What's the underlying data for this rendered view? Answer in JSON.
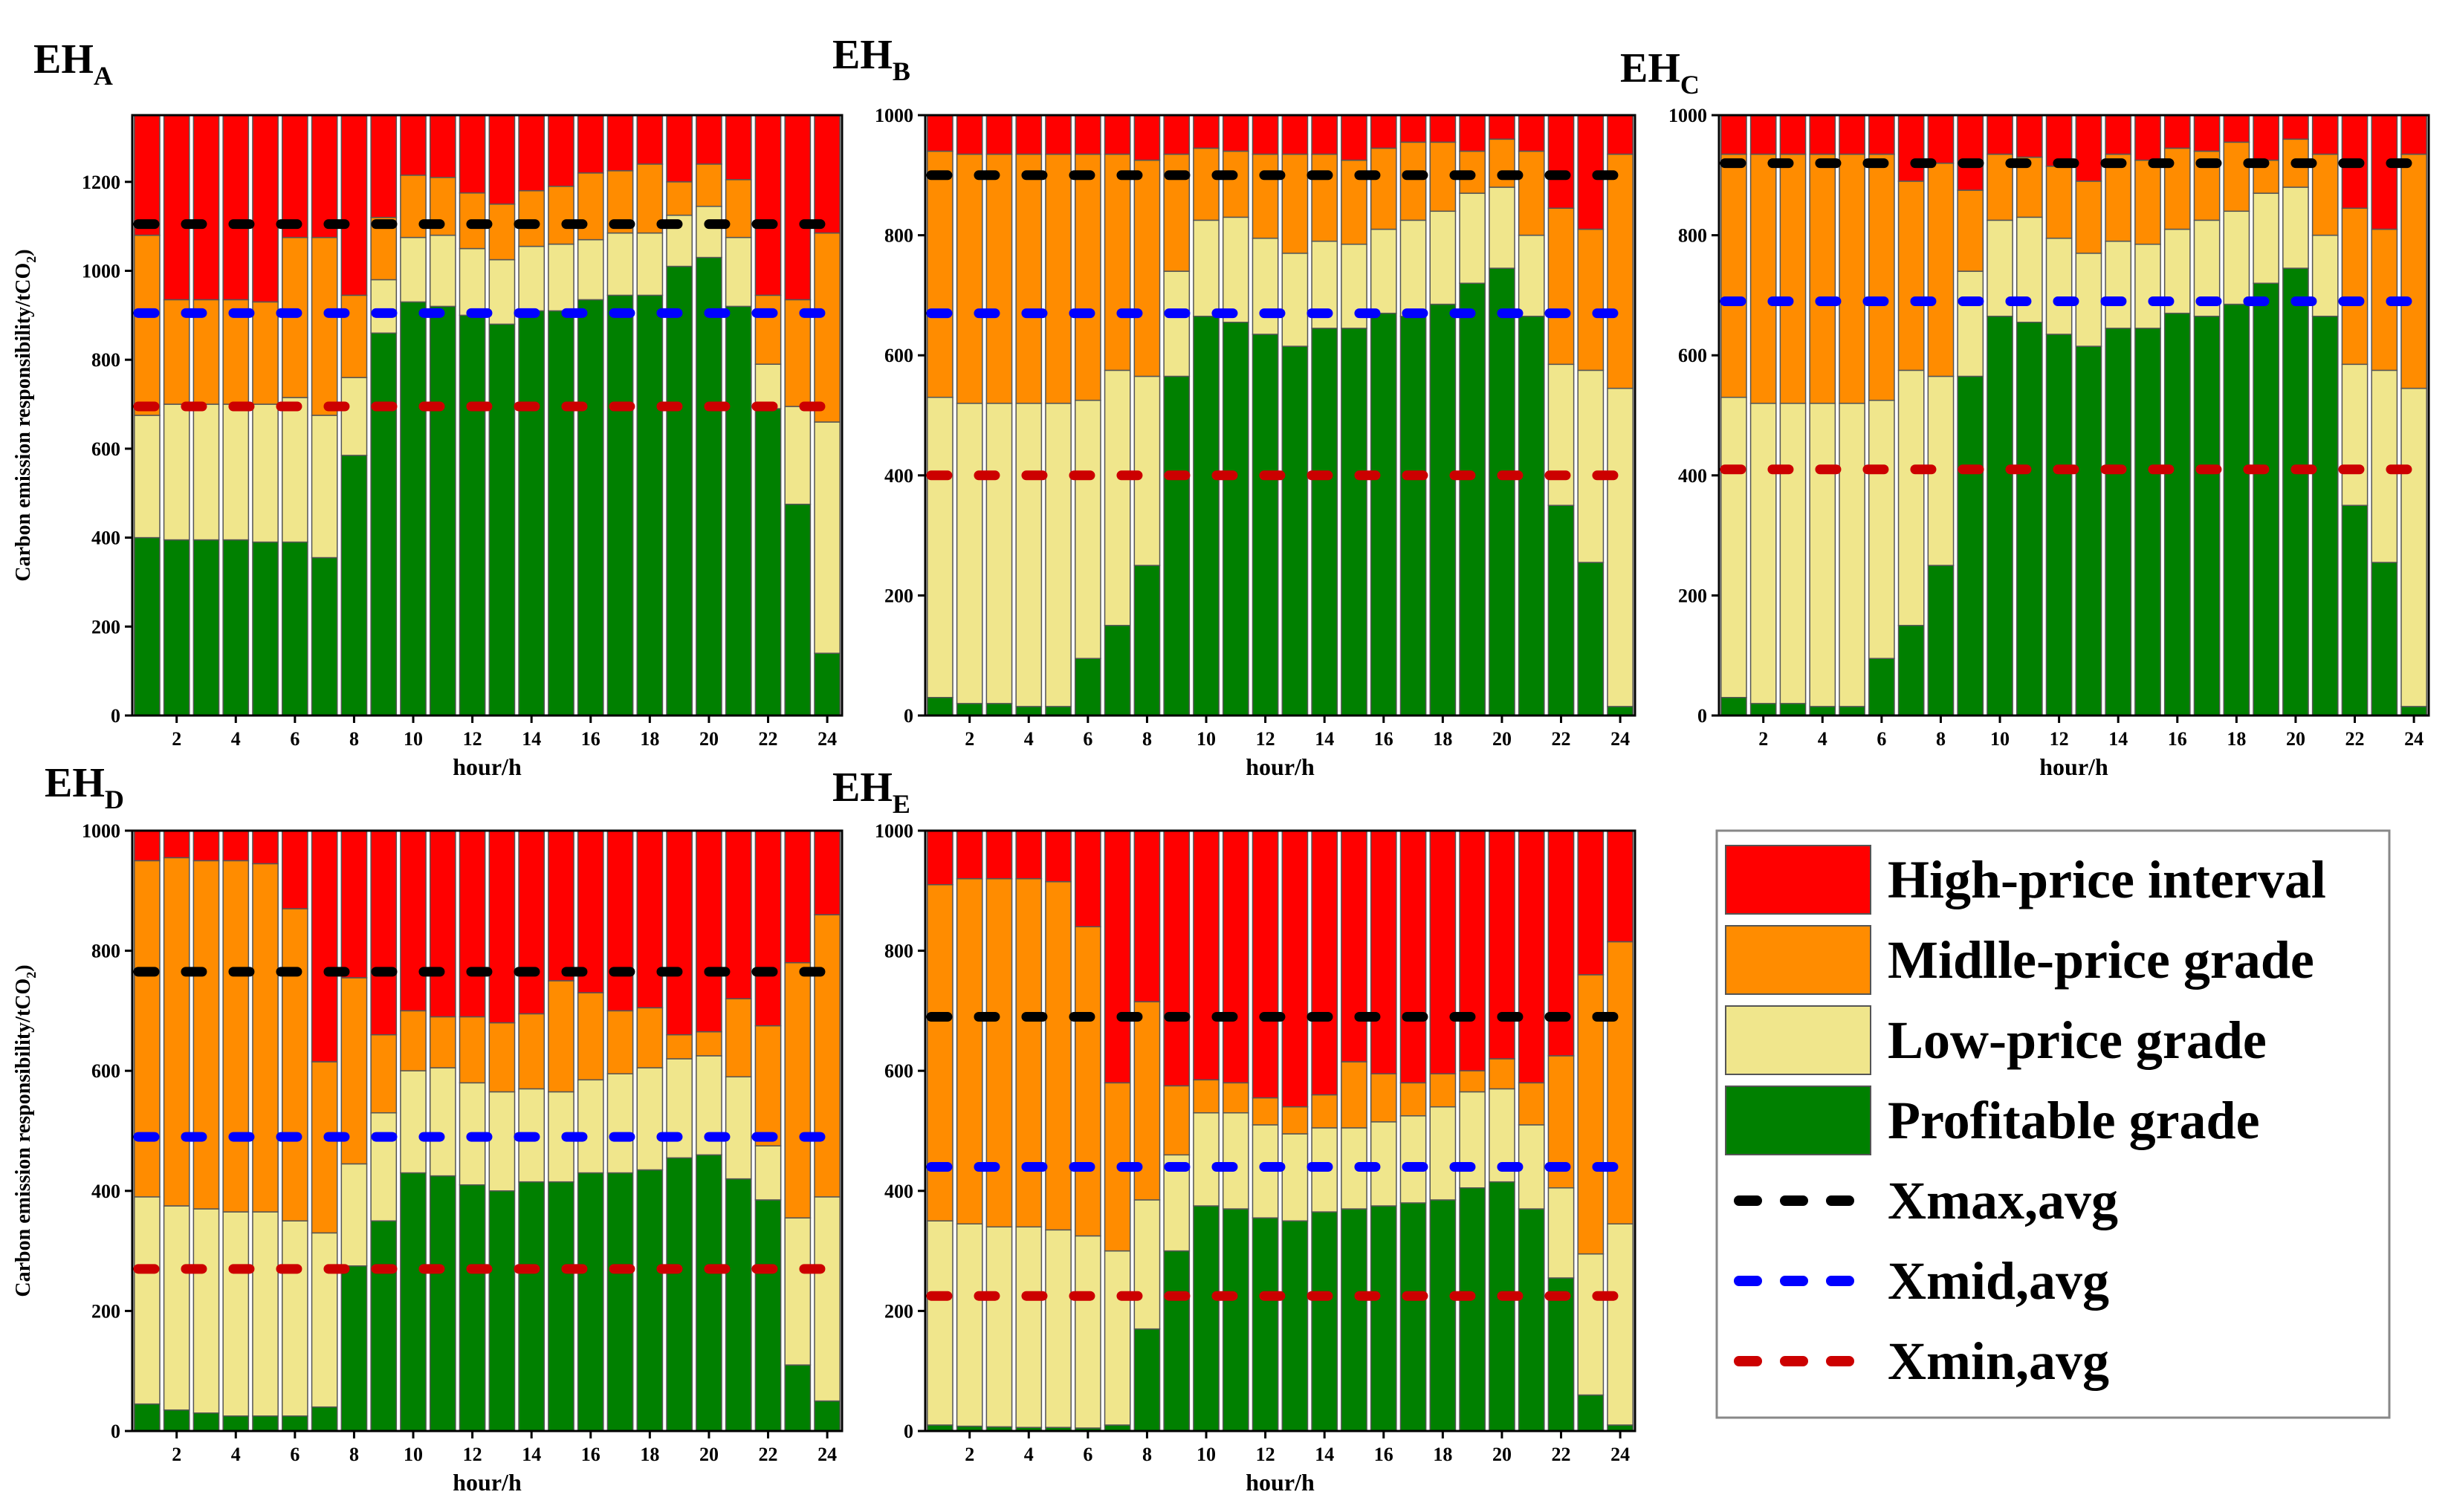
{
  "chart_data": {
    "type": "bar",
    "stacked": true,
    "legend": {
      "placement": "bottom-right",
      "entries": [
        {
          "label": "High-price interval",
          "color": "#ff0000",
          "kind": "bar"
        },
        {
          "label": "Midlle-price grade",
          "color": "#ff8c00",
          "kind": "bar"
        },
        {
          "label": "Low-price grade",
          "color": "#f0e68c",
          "kind": "bar"
        },
        {
          "label": "Profitable grade",
          "color": "#008000",
          "kind": "bar"
        },
        {
          "label": "Xmax,avg",
          "color": "#000000",
          "kind": "dash"
        },
        {
          "label": "Xmid,avg",
          "color": "#0000ff",
          "kind": "dash"
        },
        {
          "label": "Xmin,avg",
          "color": "#cc0000",
          "kind": "dash"
        }
      ]
    },
    "charts": [
      {
        "title_main": "EH",
        "title_sub": "A",
        "xlabel": "hour/h",
        "ylabel_main": "Carbon emission responsibility/tCO",
        "ylabel_sub": "2",
        "ylabel_end": ")",
        "ylim": [
          0,
          1350
        ],
        "yticks": [
          0,
          200,
          400,
          600,
          800,
          1000,
          1200
        ],
        "xticks": [
          2,
          4,
          6,
          8,
          10,
          12,
          14,
          16,
          18,
          20,
          22,
          24
        ],
        "categories": [
          1,
          2,
          3,
          4,
          5,
          6,
          7,
          8,
          9,
          10,
          11,
          12,
          13,
          14,
          15,
          16,
          17,
          18,
          19,
          20,
          21,
          22,
          23,
          24
        ],
        "profitable": [
          400,
          395,
          395,
          395,
          390,
          390,
          355,
          585,
          860,
          930,
          920,
          900,
          880,
          910,
          910,
          935,
          945,
          945,
          1010,
          1030,
          920,
          690,
          475,
          140
        ],
        "low": [
          675,
          700,
          700,
          700,
          700,
          715,
          675,
          760,
          980,
          1075,
          1080,
          1050,
          1025,
          1055,
          1060,
          1070,
          1085,
          1085,
          1125,
          1145,
          1075,
          790,
          695,
          660
        ],
        "mid": [
          1080,
          935,
          935,
          935,
          930,
          1075,
          1075,
          945,
          1120,
          1215,
          1210,
          1175,
          1150,
          1180,
          1190,
          1220,
          1225,
          1240,
          1200,
          1240,
          1205,
          945,
          935,
          1085
        ],
        "high": [
          1350,
          1350,
          1350,
          1350,
          1350,
          1350,
          1350,
          1350,
          1350,
          1350,
          1350,
          1350,
          1350,
          1350,
          1350,
          1350,
          1350,
          1350,
          1350,
          1350,
          1350,
          1350,
          1350,
          1350
        ],
        "xmax_avg": 1105,
        "xmid_avg": 905,
        "xmin_avg": 695
      },
      {
        "title_main": "EH",
        "title_sub": "B",
        "xlabel": "hour/h",
        "ylim": [
          0,
          1000
        ],
        "yticks": [
          0,
          200,
          400,
          600,
          800,
          1000
        ],
        "xticks": [
          2,
          4,
          6,
          8,
          10,
          12,
          14,
          16,
          18,
          20,
          22,
          24
        ],
        "categories": [
          1,
          2,
          3,
          4,
          5,
          6,
          7,
          8,
          9,
          10,
          11,
          12,
          13,
          14,
          15,
          16,
          17,
          18,
          19,
          20,
          21,
          22,
          23,
          24
        ],
        "profitable": [
          30,
          20,
          20,
          15,
          15,
          95,
          150,
          250,
          565,
          665,
          655,
          635,
          615,
          645,
          645,
          670,
          665,
          685,
          720,
          745,
          665,
          350,
          255,
          15
        ],
        "low": [
          530,
          520,
          520,
          520,
          520,
          525,
          575,
          565,
          740,
          825,
          830,
          795,
          770,
          790,
          785,
          810,
          825,
          840,
          870,
          880,
          800,
          585,
          575,
          545
        ],
        "mid": [
          940,
          935,
          935,
          935,
          935,
          935,
          935,
          925,
          935,
          945,
          940,
          935,
          935,
          935,
          925,
          945,
          955,
          955,
          940,
          960,
          940,
          845,
          810,
          935
        ],
        "high": [
          1000,
          1000,
          1000,
          1000,
          1000,
          1000,
          1000,
          1000,
          1000,
          1000,
          1000,
          1000,
          1000,
          1000,
          1000,
          1000,
          1000,
          1000,
          1000,
          1000,
          1000,
          1000,
          1000,
          1000
        ],
        "xmax_avg": 900,
        "xmid_avg": 670,
        "xmin_avg": 400
      },
      {
        "title_main": "EH",
        "title_sub": "C",
        "xlabel": "hour/h",
        "ylim": [
          0,
          1000
        ],
        "yticks": [
          0,
          200,
          400,
          600,
          800,
          1000
        ],
        "xticks": [
          2,
          4,
          6,
          8,
          10,
          12,
          14,
          16,
          18,
          20,
          22,
          24
        ],
        "categories": [
          1,
          2,
          3,
          4,
          5,
          6,
          7,
          8,
          9,
          10,
          11,
          12,
          13,
          14,
          15,
          16,
          17,
          18,
          19,
          20,
          21,
          22,
          23,
          24
        ],
        "profitable": [
          30,
          20,
          20,
          15,
          15,
          95,
          150,
          250,
          565,
          665,
          655,
          635,
          615,
          645,
          645,
          670,
          665,
          685,
          720,
          745,
          665,
          350,
          255,
          15
        ],
        "low": [
          530,
          520,
          520,
          520,
          520,
          525,
          575,
          565,
          740,
          825,
          830,
          795,
          770,
          790,
          785,
          810,
          825,
          840,
          870,
          880,
          800,
          585,
          575,
          545
        ],
        "mid": [
          935,
          935,
          935,
          935,
          935,
          935,
          890,
          920,
          875,
          935,
          930,
          915,
          890,
          935,
          925,
          945,
          940,
          955,
          925,
          960,
          935,
          845,
          810,
          935
        ],
        "high": [
          1000,
          1000,
          1000,
          1000,
          1000,
          1000,
          1000,
          1000,
          1000,
          1000,
          1000,
          1000,
          1000,
          1000,
          1000,
          1000,
          1000,
          1000,
          1000,
          1000,
          1000,
          1000,
          1000,
          1000
        ],
        "xmax_avg": 920,
        "xmid_avg": 690,
        "xmin_avg": 410
      },
      {
        "title_main": "EH",
        "title_sub": "D",
        "xlabel": "hour/h",
        "ylabel_main": "Carbon emission responsibility/tCO",
        "ylabel_sub": "2",
        "ylabel_end": ")",
        "ylim": [
          0,
          1000
        ],
        "yticks": [
          0,
          200,
          400,
          600,
          800,
          1000
        ],
        "xticks": [
          2,
          4,
          6,
          8,
          10,
          12,
          14,
          16,
          18,
          20,
          22,
          24
        ],
        "categories": [
          1,
          2,
          3,
          4,
          5,
          6,
          7,
          8,
          9,
          10,
          11,
          12,
          13,
          14,
          15,
          16,
          17,
          18,
          19,
          20,
          21,
          22,
          23,
          24
        ],
        "profitable": [
          45,
          35,
          30,
          25,
          25,
          25,
          40,
          275,
          350,
          430,
          425,
          410,
          400,
          415,
          415,
          430,
          430,
          435,
          455,
          460,
          420,
          385,
          110,
          50
        ],
        "low": [
          390,
          375,
          370,
          365,
          365,
          350,
          330,
          445,
          530,
          600,
          605,
          580,
          565,
          570,
          565,
          585,
          595,
          605,
          620,
          625,
          590,
          475,
          355,
          390
        ],
        "mid": [
          950,
          955,
          950,
          950,
          945,
          870,
          615,
          755,
          660,
          700,
          690,
          690,
          680,
          695,
          750,
          730,
          700,
          705,
          660,
          665,
          720,
          675,
          780,
          860
        ],
        "high": [
          1000,
          1000,
          1000,
          1000,
          1000,
          1000,
          1000,
          1000,
          1000,
          1000,
          1000,
          1000,
          1000,
          1000,
          1000,
          1000,
          1000,
          1000,
          1000,
          1000,
          1000,
          1000,
          1000,
          1000
        ],
        "xmax_avg": 765,
        "xmid_avg": 490,
        "xmin_avg": 270
      },
      {
        "title_main": "EH",
        "title_sub": "E",
        "xlabel": "hour/h",
        "ylim": [
          0,
          1000
        ],
        "yticks": [
          0,
          200,
          400,
          600,
          800,
          1000
        ],
        "xticks": [
          2,
          4,
          6,
          8,
          10,
          12,
          14,
          16,
          18,
          20,
          22,
          24
        ],
        "categories": [
          1,
          2,
          3,
          4,
          5,
          6,
          7,
          8,
          9,
          10,
          11,
          12,
          13,
          14,
          15,
          16,
          17,
          18,
          19,
          20,
          21,
          22,
          23,
          24
        ],
        "profitable": [
          10,
          8,
          7,
          6,
          6,
          5,
          10,
          170,
          300,
          375,
          370,
          355,
          350,
          365,
          370,
          375,
          380,
          385,
          405,
          415,
          370,
          255,
          60,
          10
        ],
        "low": [
          350,
          345,
          340,
          340,
          335,
          325,
          300,
          385,
          460,
          530,
          530,
          510,
          495,
          505,
          505,
          515,
          525,
          540,
          565,
          570,
          510,
          405,
          295,
          345
        ],
        "mid": [
          910,
          920,
          920,
          920,
          915,
          840,
          580,
          715,
          575,
          585,
          580,
          555,
          540,
          560,
          615,
          595,
          580,
          595,
          600,
          620,
          580,
          625,
          760,
          815
        ],
        "high": [
          1000,
          1000,
          1000,
          1000,
          1000,
          1000,
          1000,
          1000,
          1000,
          1000,
          1000,
          1000,
          1000,
          1000,
          1000,
          1000,
          1000,
          1000,
          1000,
          1000,
          1000,
          1000,
          1000,
          1000
        ],
        "xmax_avg": 690,
        "xmid_avg": 440,
        "xmin_avg": 225
      }
    ]
  }
}
